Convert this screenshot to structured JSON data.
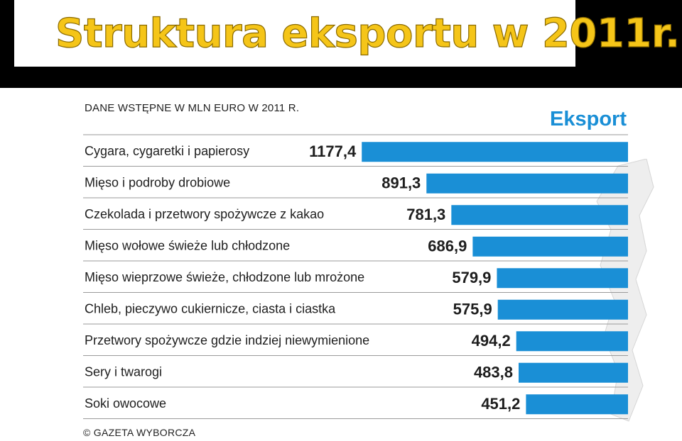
{
  "slide": {
    "title": "Struktura eksportu w 2011r."
  },
  "chart_data": {
    "type": "bar",
    "orientation": "horizontal",
    "subtitle": "DANE WSTĘPNE W MLN EURO W 2011 R.",
    "legend_title": "Eksport",
    "source": "© GAZETA WYBORCZA",
    "categories": [
      "Cygara, cygaretki i papierosy",
      "Mięso i podroby drobiowe",
      "Czekolada i przetwory spożywcze z kakao",
      "Mięso wołowe świeże lub chłodzone",
      "Mięso wieprzowe świeże, chłodzone lub mrożone",
      "Chleb, pieczywo cukiernicze, ciasta i ciastka",
      "Przetwory spożywcze gdzie indziej niewymienione",
      "Sery i twarogi",
      "Soki owocowe"
    ],
    "values": [
      1177.4,
      891.3,
      781.3,
      686.9,
      579.9,
      575.9,
      494.2,
      483.8,
      451.2
    ],
    "value_labels": [
      "1177,4",
      "891,3",
      "781,3",
      "686,9",
      "579,9",
      "575,9",
      "494,2",
      "483,8",
      "451,2"
    ],
    "bar_color": "#1a8fd6",
    "label_color": "#1e1e1e",
    "grid": false
  }
}
